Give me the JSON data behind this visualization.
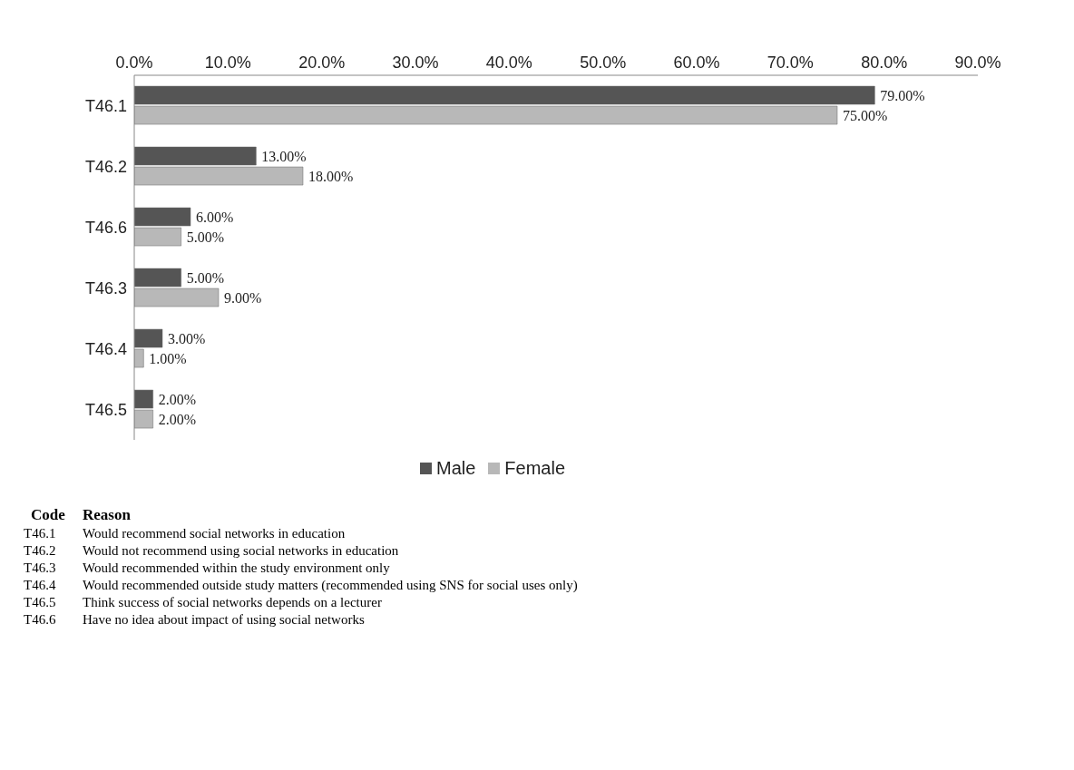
{
  "chart_data": {
    "type": "bar",
    "orientation": "horizontal",
    "categories": [
      "T46.1",
      "T46.2",
      "T46.6",
      "T46.3",
      "T46.4",
      "T46.5"
    ],
    "series": [
      {
        "name": "Male",
        "color": "#555555",
        "values": [
          79,
          13,
          6,
          5,
          3,
          2
        ],
        "value_labels": [
          "79.00%",
          "13.00%",
          "6.00%",
          "5.00%",
          "3.00%",
          "2.00%"
        ]
      },
      {
        "name": "Female",
        "color": "#b8b8b8",
        "values": [
          75,
          18,
          5,
          9,
          1,
          2
        ],
        "value_labels": [
          "75.00%",
          "18.00%",
          "5.00%",
          "9.00%",
          "1.00%",
          "2.00%"
        ]
      }
    ],
    "xlim": [
      0,
      90
    ],
    "xticks": [
      {
        "value": 0,
        "label": "0.0%"
      },
      {
        "value": 10,
        "label": "10.0%"
      },
      {
        "value": 20,
        "label": "20.0%"
      },
      {
        "value": 30,
        "label": "30.0%"
      },
      {
        "value": 40,
        "label": "40.0%"
      },
      {
        "value": 50,
        "label": "50.0%"
      },
      {
        "value": 60,
        "label": "60.0%"
      },
      {
        "value": 70,
        "label": "70.0%"
      },
      {
        "value": 80,
        "label": "80.0%"
      },
      {
        "value": 90,
        "label": "90.0%"
      }
    ],
    "grid": false,
    "legend": "bottom",
    "annotations": [
      "Code",
      "Reason",
      "T46.1",
      "Would recommend social networks in education",
      "T46.2",
      "Would not recommend using social networks in education",
      "T46.3",
      "Would recommended within the study environment only",
      "T46.4",
      "Would recommended outside study matters (recommended using SNS for social uses only)",
      "T46.5",
      "Think success of social networks depends on a lecturer",
      "T46.6",
      "Have no idea about impact of using social networks"
    ]
  }
}
